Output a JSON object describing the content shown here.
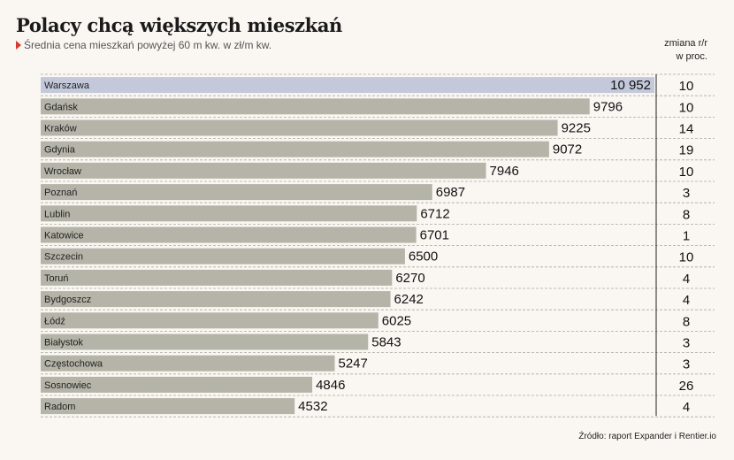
{
  "chart_data": {
    "type": "bar",
    "orientation": "horizontal",
    "title": "Polacy chcą większych mieszkań",
    "subtitle": "Średnia cena mieszkań powyżej 60 m kw. w zł/m kw.",
    "categories": [
      "Warszawa",
      "Gdańsk",
      "Kraków",
      "Gdynia",
      "Wrocław",
      "Poznań",
      "Lublin",
      "Katowice",
      "Szczecin",
      "Toruń",
      "Bydgoszcz",
      "Łódź",
      "Białystok",
      "Częstochowa",
      "Sosnowiec",
      "Radom"
    ],
    "value_labels": [
      "10 952",
      "9796",
      "9225",
      "9072",
      "7946",
      "6987",
      "6712",
      "6701",
      "6500",
      "6270",
      "6242",
      "6025",
      "5843",
      "5247",
      "4846",
      "4532"
    ],
    "values": [
      10952,
      9796,
      9225,
      9072,
      7946,
      6987,
      6712,
      6701,
      6500,
      6270,
      6242,
      6025,
      5843,
      5247,
      4846,
      4532
    ],
    "change_header": [
      "zmiana r/r",
      "w proc."
    ],
    "change_values": [
      10,
      10,
      14,
      19,
      10,
      3,
      8,
      1,
      10,
      4,
      4,
      8,
      3,
      3,
      26,
      4
    ],
    "xlim": [
      0,
      10952
    ],
    "highlight_category": "Warszawa",
    "colors": {
      "bar": "#b5b4a8",
      "highlight_bar": "#c3c9da",
      "marker": "#d63a2f",
      "background": "#faf7f2"
    },
    "grid": false
  },
  "source": "Źródło: raport Expander i Rentier.io"
}
